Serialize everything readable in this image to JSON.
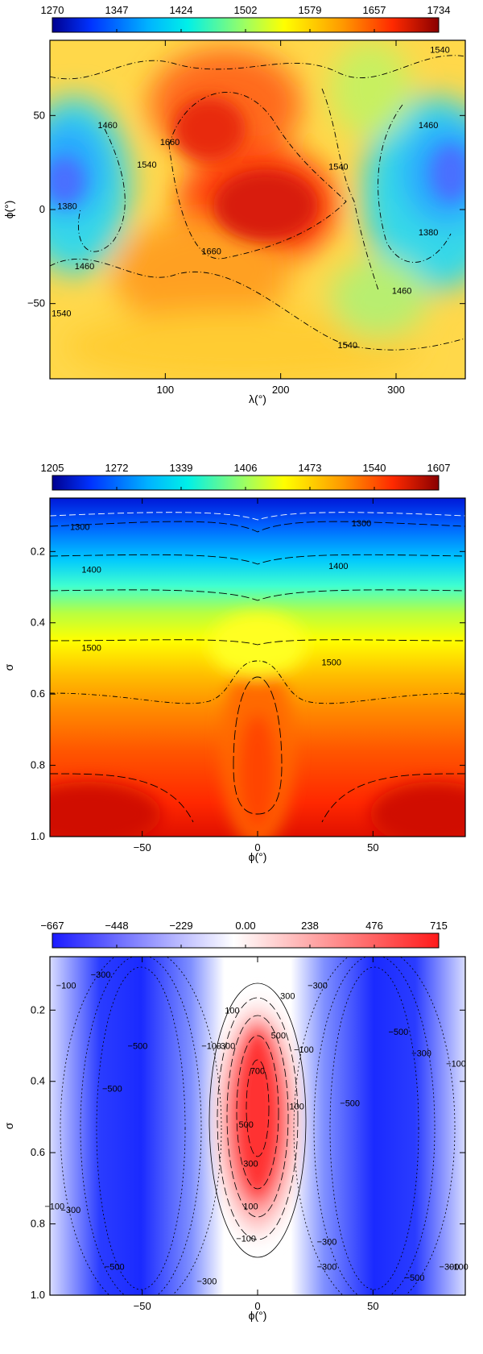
{
  "chart_data": [
    {
      "type": "heatmap",
      "title": "",
      "xlabel": "λ(°)",
      "ylabel": "ϕ(°)",
      "xlim": [
        0,
        360
      ],
      "ylim": [
        -90,
        90
      ],
      "x_ticks": [
        100,
        200,
        300
      ],
      "y_ticks": [
        -50,
        0,
        50
      ],
      "colorbar": {
        "ticks": [
          "1270",
          "1347",
          "1424",
          "1502",
          "1579",
          "1657",
          "1734"
        ],
        "range": [
          1270,
          1734
        ],
        "colormap": "rainbow"
      },
      "contour_labels": [
        {
          "text": "1540",
          "x": 338,
          "y": 85
        },
        {
          "text": "1460",
          "x": 50,
          "y": 45
        },
        {
          "text": "1460",
          "x": 328,
          "y": 45
        },
        {
          "text": "1660",
          "x": 104,
          "y": 36
        },
        {
          "text": "1540",
          "x": 84,
          "y": 24
        },
        {
          "text": "1540",
          "x": 250,
          "y": 23
        },
        {
          "text": "1380",
          "x": 15,
          "y": 2
        },
        {
          "text": "1380",
          "x": 328,
          "y": -12
        },
        {
          "text": "1660",
          "x": 140,
          "y": -22
        },
        {
          "text": "1460",
          "x": 30,
          "y": -30
        },
        {
          "text": "1460",
          "x": 305,
          "y": -43
        },
        {
          "text": "1540",
          "x": 10,
          "y": -55
        },
        {
          "text": "1540",
          "x": 258,
          "y": -72
        }
      ]
    },
    {
      "type": "heatmap",
      "title": "",
      "xlabel": "ϕ(°)",
      "ylabel": "σ",
      "xlim": [
        -90,
        90
      ],
      "ylim": [
        0.05,
        1.0
      ],
      "x_ticks": [
        -50,
        0,
        50
      ],
      "y_ticks": [
        "0.2",
        "0.4",
        "0.6",
        "0.8",
        "1.0"
      ],
      "y_ticks_values": [
        0.2,
        0.4,
        0.6,
        0.8,
        1.0
      ],
      "y_inverted": true,
      "colorbar": {
        "ticks": [
          "1205",
          "1272",
          "1339",
          "1406",
          "1473",
          "1540",
          "1607"
        ],
        "range": [
          1205,
          1607
        ],
        "colormap": "rainbow"
      },
      "contour_labels": [
        {
          "text": "1300",
          "x": -77,
          "y": 0.13
        },
        {
          "text": "1300",
          "x": 45,
          "y": 0.12
        },
        {
          "text": "1400",
          "x": -72,
          "y": 0.25
        },
        {
          "text": "1400",
          "x": 35,
          "y": 0.24
        },
        {
          "text": "1500",
          "x": -72,
          "y": 0.47
        },
        {
          "text": "1500",
          "x": 32,
          "y": 0.51
        }
      ]
    },
    {
      "type": "heatmap",
      "title": "",
      "xlabel": "ϕ(°)",
      "ylabel": "σ",
      "xlim": [
        -90,
        90
      ],
      "ylim": [
        0.05,
        1.0
      ],
      "x_ticks": [
        -50,
        0,
        50
      ],
      "y_ticks": [
        "0.2",
        "0.4",
        "0.6",
        "0.8",
        "1.0"
      ],
      "y_ticks_values": [
        0.2,
        0.4,
        0.6,
        0.8,
        1.0
      ],
      "y_inverted": true,
      "colorbar": {
        "ticks": [
          "−667",
          "−448",
          "−229",
          "0.00",
          "238",
          "476",
          "715"
        ],
        "range": [
          -667,
          715
        ],
        "colormap": "blue-white-red"
      },
      "contour_labels": [
        {
          "text": "−100",
          "x": -83,
          "y": 0.13
        },
        {
          "text": "−300",
          "x": -68,
          "y": 0.1
        },
        {
          "text": "100",
          "x": -11,
          "y": 0.2
        },
        {
          "text": "300",
          "x": 13,
          "y": 0.16
        },
        {
          "text": "−300",
          "x": 26,
          "y": 0.13
        },
        {
          "text": "−500",
          "x": -52,
          "y": 0.3
        },
        {
          "text": "−100",
          "x": -20,
          "y": 0.3
        },
        {
          "text": "−300",
          "x": -14,
          "y": 0.3
        },
        {
          "text": "500",
          "x": 9,
          "y": 0.27
        },
        {
          "text": "−100",
          "x": 20,
          "y": 0.31
        },
        {
          "text": "−500",
          "x": 61,
          "y": 0.26
        },
        {
          "text": "−300",
          "x": 71,
          "y": 0.32
        },
        {
          "text": "−100",
          "x": 86,
          "y": 0.35
        },
        {
          "text": "−500",
          "x": -63,
          "y": 0.42
        },
        {
          "text": "700",
          "x": 0,
          "y": 0.37
        },
        {
          "text": "100",
          "x": 17,
          "y": 0.47
        },
        {
          "text": "−500",
          "x": 40,
          "y": 0.46
        },
        {
          "text": "500",
          "x": -5,
          "y": 0.52
        },
        {
          "text": "300",
          "x": -3,
          "y": 0.63
        },
        {
          "text": "−100",
          "x": -88,
          "y": 0.75
        },
        {
          "text": "−300",
          "x": -81,
          "y": 0.76
        },
        {
          "text": "100",
          "x": -3,
          "y": 0.75
        },
        {
          "text": "−100",
          "x": -5,
          "y": 0.84
        },
        {
          "text": "−300",
          "x": 30,
          "y": 0.85
        },
        {
          "text": "−300",
          "x": 30,
          "y": 0.92
        },
        {
          "text": "−500",
          "x": -62,
          "y": 0.92
        },
        {
          "text": "−300",
          "x": -22,
          "y": 0.96
        },
        {
          "text": "−300",
          "x": 83,
          "y": 0.92
        },
        {
          "text": "−100",
          "x": 87,
          "y": 0.92
        },
        {
          "text": "−500",
          "x": 68,
          "y": 0.95
        }
      ]
    }
  ]
}
